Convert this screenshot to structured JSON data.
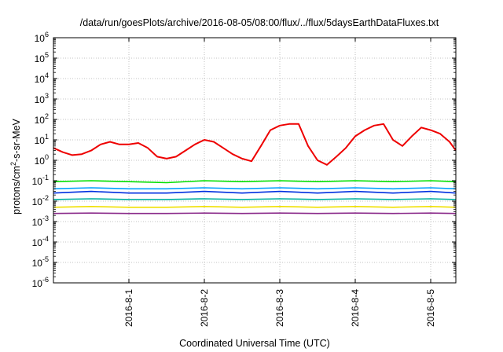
{
  "chart_data": {
    "type": "line",
    "title": "/data/run/goesPlots/archive/2016-08-05/08:00/flux/../flux/5daysEarthDataFluxes.txt",
    "xlabel": "Coordinated Universal Time (UTC)",
    "ylabel": "protons/cm2-s-sr-MeV",
    "ylabel_parts": {
      "pre": "protons/cm",
      "sup": "2",
      "post": "-s-sr-MeV"
    },
    "xlim": [
      "2016-07-31T00:00",
      "2016-08-05T08:00"
    ],
    "ylim": [
      1e-06,
      1000000.0
    ],
    "yscale": "log",
    "grid": true,
    "legend": "none",
    "x_ticks": [
      "2016-8-1",
      "2016-8-2",
      "2016-8-3",
      "2016-8-4",
      "2016-8-5"
    ],
    "y_ticks": [
      {
        "base": "10",
        "exp": "6"
      },
      {
        "base": "10",
        "exp": "5"
      },
      {
        "base": "10",
        "exp": "4"
      },
      {
        "base": "10",
        "exp": "3"
      },
      {
        "base": "10",
        "exp": "2"
      },
      {
        "base": "10",
        "exp": "1"
      },
      {
        "base": "10",
        "exp": "0"
      },
      {
        "base": "10",
        "exp": "-1"
      },
      {
        "base": "10",
        "exp": "-2"
      },
      {
        "base": "10",
        "exp": "-3"
      },
      {
        "base": "10",
        "exp": "-4"
      },
      {
        "base": "10",
        "exp": "-5"
      },
      {
        "base": "10",
        "exp": "-6"
      }
    ],
    "series": [
      {
        "color": "#00e000",
        "x": [
          "2016-07-31T00:00",
          "2016-07-31T12:00",
          "2016-08-01T00:00",
          "2016-08-01T12:00",
          "2016-08-02T00:00",
          "2016-08-02T12:00",
          "2016-08-03T00:00",
          "2016-08-03T12:00",
          "2016-08-04T00:00",
          "2016-08-04T12:00",
          "2016-08-05T00:00",
          "2016-08-05T08:00"
        ],
        "y": [
          0.09,
          0.1,
          0.09,
          0.08,
          0.1,
          0.09,
          0.1,
          0.09,
          0.1,
          0.09,
          0.1,
          0.09
        ]
      },
      {
        "color": "#00a0ff",
        "x": [
          "2016-07-31T00:00",
          "2016-07-31T12:00",
          "2016-08-01T00:00",
          "2016-08-01T12:00",
          "2016-08-02T00:00",
          "2016-08-02T12:00",
          "2016-08-03T00:00",
          "2016-08-03T12:00",
          "2016-08-04T00:00",
          "2016-08-04T12:00",
          "2016-08-05T00:00",
          "2016-08-05T08:00"
        ],
        "y": [
          0.04,
          0.045,
          0.04,
          0.04,
          0.045,
          0.04,
          0.045,
          0.04,
          0.045,
          0.04,
          0.045,
          0.04
        ]
      },
      {
        "color": "#0030e0",
        "x": [
          "2016-07-31T00:00",
          "2016-07-31T12:00",
          "2016-08-01T00:00",
          "2016-08-01T12:00",
          "2016-08-02T00:00",
          "2016-08-02T12:00",
          "2016-08-03T00:00",
          "2016-08-03T12:00",
          "2016-08-04T00:00",
          "2016-08-04T12:00",
          "2016-08-05T00:00",
          "2016-08-05T08:00"
        ],
        "y": [
          0.025,
          0.03,
          0.025,
          0.025,
          0.03,
          0.025,
          0.03,
          0.025,
          0.03,
          0.025,
          0.03,
          0.025
        ]
      },
      {
        "color": "#00b0a0",
        "x": [
          "2016-07-31T00:00",
          "2016-07-31T12:00",
          "2016-08-01T00:00",
          "2016-08-01T12:00",
          "2016-08-02T00:00",
          "2016-08-02T12:00",
          "2016-08-03T00:00",
          "2016-08-03T12:00",
          "2016-08-04T00:00",
          "2016-08-04T12:00",
          "2016-08-05T00:00",
          "2016-08-05T08:00"
        ],
        "y": [
          0.012,
          0.013,
          0.012,
          0.012,
          0.013,
          0.012,
          0.013,
          0.012,
          0.013,
          0.012,
          0.013,
          0.012
        ]
      },
      {
        "color": "#f0e000",
        "x": [
          "2016-07-31T00:00",
          "2016-07-31T12:00",
          "2016-08-01T00:00",
          "2016-08-01T12:00",
          "2016-08-02T00:00",
          "2016-08-02T12:00",
          "2016-08-03T00:00",
          "2016-08-03T12:00",
          "2016-08-04T00:00",
          "2016-08-04T12:00",
          "2016-08-05T00:00",
          "2016-08-05T08:00"
        ],
        "y": [
          0.005,
          0.0055,
          0.005,
          0.005,
          0.0055,
          0.005,
          0.0055,
          0.005,
          0.0055,
          0.005,
          0.0055,
          0.005
        ]
      },
      {
        "color": "#8a2a8a",
        "x": [
          "2016-07-31T00:00",
          "2016-07-31T12:00",
          "2016-08-01T00:00",
          "2016-08-01T12:00",
          "2016-08-02T00:00",
          "2016-08-02T12:00",
          "2016-08-03T00:00",
          "2016-08-03T12:00",
          "2016-08-04T00:00",
          "2016-08-04T12:00",
          "2016-08-05T00:00",
          "2016-08-05T08:00"
        ],
        "y": [
          0.0025,
          0.0026,
          0.0025,
          0.0025,
          0.0026,
          0.0025,
          0.0026,
          0.0025,
          0.0026,
          0.0025,
          0.0026,
          0.0025
        ]
      },
      {
        "color": "#ee0000",
        "x": [
          "2016-07-31T00:00",
          "2016-07-31T03:00",
          "2016-07-31T06:00",
          "2016-07-31T09:00",
          "2016-07-31T12:00",
          "2016-07-31T15:00",
          "2016-07-31T18:00",
          "2016-07-31T21:00",
          "2016-08-01T00:00",
          "2016-08-01T03:00",
          "2016-08-01T06:00",
          "2016-08-01T09:00",
          "2016-08-01T12:00",
          "2016-08-01T15:00",
          "2016-08-01T18:00",
          "2016-08-01T21:00",
          "2016-08-02T00:00",
          "2016-08-02T03:00",
          "2016-08-02T06:00",
          "2016-08-02T09:00",
          "2016-08-02T12:00",
          "2016-08-02T15:00",
          "2016-08-02T18:00",
          "2016-08-02T21:00",
          "2016-08-03T00:00",
          "2016-08-03T03:00",
          "2016-08-03T06:00",
          "2016-08-03T09:00",
          "2016-08-03T12:00",
          "2016-08-03T15:00",
          "2016-08-03T18:00",
          "2016-08-03T21:00",
          "2016-08-04T00:00",
          "2016-08-04T03:00",
          "2016-08-04T06:00",
          "2016-08-04T09:00",
          "2016-08-04T12:00",
          "2016-08-04T15:00",
          "2016-08-04T18:00",
          "2016-08-04T21:00",
          "2016-08-05T00:00",
          "2016-08-05T03:00",
          "2016-08-05T06:00",
          "2016-08-05T08:00"
        ],
        "y": [
          4,
          2.5,
          1.8,
          2,
          3,
          6,
          8,
          6,
          6,
          7,
          4,
          1.5,
          1.2,
          1.5,
          3,
          6,
          10,
          8,
          4,
          2,
          1.2,
          0.9,
          5,
          30,
          50,
          60,
          60,
          5,
          1,
          0.6,
          1.5,
          4,
          15,
          30,
          50,
          60,
          10,
          5,
          15,
          40,
          30,
          20,
          8,
          3
        ]
      }
    ]
  }
}
